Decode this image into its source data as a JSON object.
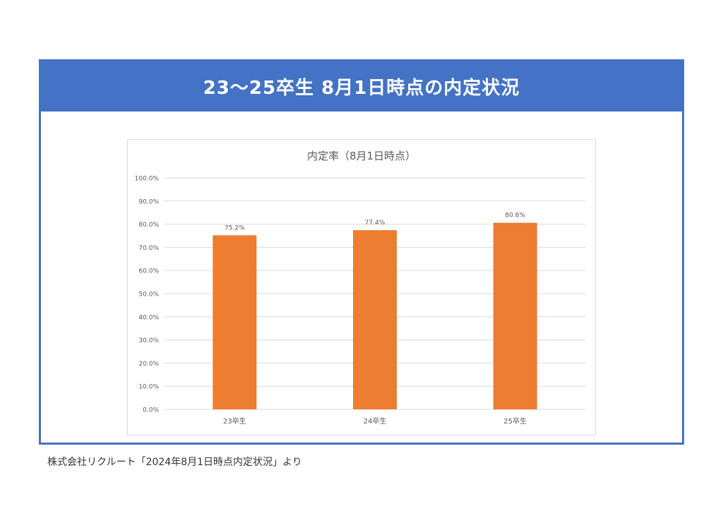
{
  "header": {
    "title": "23～25卒生 8月1日時点の内定状況"
  },
  "source": "株式会社リクルート「2024年8月1日時点内定状況」より",
  "colors": {
    "banner": "#4472c4",
    "bar": "#ed7d31",
    "grid": "#d9d9d9",
    "text": "#595959"
  },
  "chart_data": {
    "type": "bar",
    "title": "内定率（8月1日時点）",
    "categories": [
      "23卒生",
      "24卒生",
      "25卒生"
    ],
    "values": [
      75.2,
      77.4,
      80.6
    ],
    "value_labels": [
      "75.2%",
      "77.4%",
      "80.6%"
    ],
    "xlabel": "",
    "ylabel": "",
    "ylim": [
      0,
      100
    ],
    "yticks": [
      "0.0%",
      "10.0%",
      "20.0%",
      "30.0%",
      "40.0%",
      "50.0%",
      "60.0%",
      "70.0%",
      "80.0%",
      "90.0%",
      "100.0%"
    ],
    "grid": true,
    "legend": "none"
  }
}
